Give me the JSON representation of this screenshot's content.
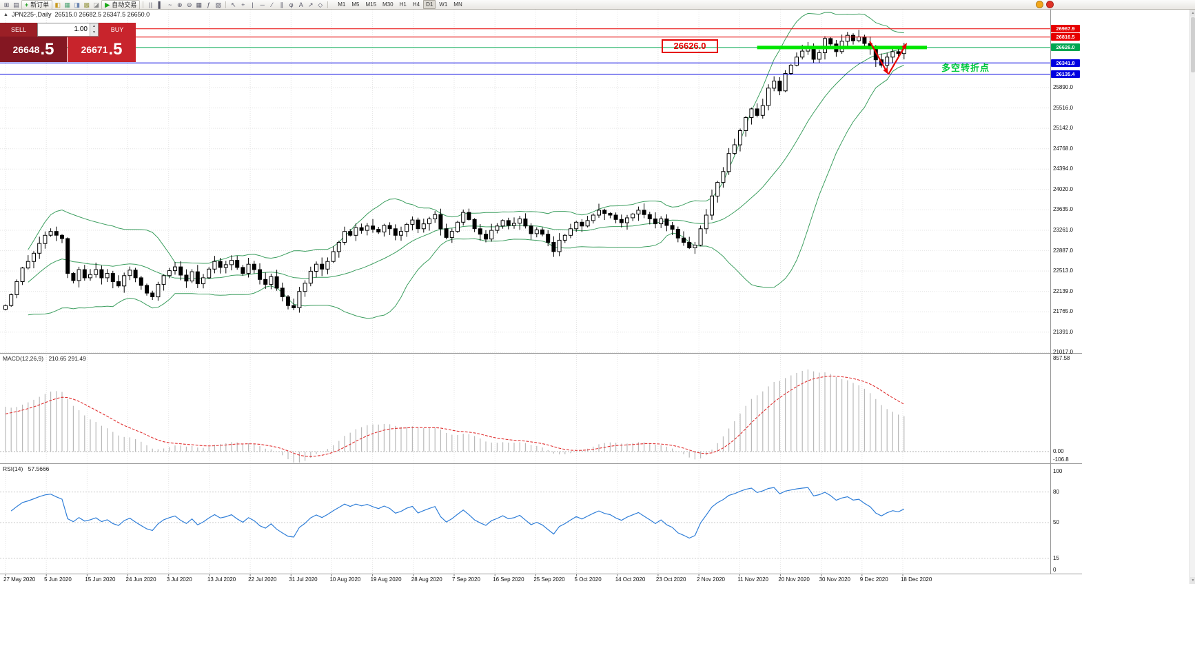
{
  "toolbar": {
    "groups": [
      {
        "type": "icons",
        "items": [
          {
            "name": "new-chart-icon",
            "glyph": "⊞"
          },
          {
            "name": "profiles-icon",
            "glyph": "▤"
          }
        ]
      },
      {
        "type": "button",
        "name": "new-order-button",
        "icon_name": "plus-icon",
        "icon": "+",
        "icon_color": "#1fa01f",
        "label": "新订单"
      },
      {
        "type": "icons",
        "items": [
          {
            "name": "market-watch-icon",
            "glyph": "◧",
            "color": "#c89a1e"
          },
          {
            "name": "data-window-icon",
            "glyph": "▦",
            "color": "#46a06e"
          },
          {
            "name": "navigator-icon",
            "glyph": "◨",
            "color": "#6a84b0"
          },
          {
            "name": "terminal-icon",
            "glyph": "▩",
            "color": "#9a9a4a"
          },
          {
            "name": "strategy-tester-icon",
            "glyph": "◪",
            "color": "#8a8a8a"
          }
        ]
      },
      {
        "type": "button",
        "name": "autotrading-button",
        "icon_name": "play-icon",
        "icon": "▶",
        "icon_color": "#18a818",
        "label": "自动交易"
      },
      {
        "type": "sep"
      },
      {
        "type": "icons",
        "items": [
          {
            "name": "bar-chart-icon",
            "glyph": "||"
          },
          {
            "name": "candle-chart-icon",
            "glyph": "▌"
          },
          {
            "name": "line-chart-icon",
            "glyph": "~"
          }
        ]
      },
      {
        "type": "icons",
        "items": [
          {
            "name": "zoom-in-icon",
            "glyph": "⊕"
          },
          {
            "name": "zoom-out-icon",
            "glyph": "⊖"
          }
        ]
      },
      {
        "type": "icons",
        "items": [
          {
            "name": "grid-icon",
            "glyph": "▦"
          },
          {
            "name": "indicators-icon",
            "glyph": "ƒ"
          },
          {
            "name": "templates-icon",
            "glyph": "▧"
          }
        ]
      },
      {
        "type": "sep"
      },
      {
        "type": "icons",
        "items": [
          {
            "name": "cursor-icon",
            "glyph": "↖"
          },
          {
            "name": "crosshair-icon",
            "glyph": "+"
          },
          {
            "name": "vertical-line-icon",
            "glyph": "|"
          },
          {
            "name": "horizontal-line-icon",
            "glyph": "─"
          },
          {
            "name": "trendline-icon",
            "glyph": "∕"
          },
          {
            "name": "channel-icon",
            "glyph": "∥"
          },
          {
            "name": "fibonacci-icon",
            "glyph": "φ"
          },
          {
            "name": "text-label-icon",
            "glyph": "A"
          },
          {
            "name": "arrow-object-icon",
            "glyph": "↗"
          },
          {
            "name": "shapes-icon",
            "glyph": "◇"
          }
        ]
      },
      {
        "type": "sep"
      },
      {
        "type": "timeframes",
        "items": [
          {
            "label": "M1"
          },
          {
            "label": "M5"
          },
          {
            "label": "M15"
          },
          {
            "label": "M30"
          },
          {
            "label": "H1"
          },
          {
            "label": "H4"
          },
          {
            "label": "D1",
            "active": true
          },
          {
            "label": "W1"
          },
          {
            "label": "MN"
          }
        ]
      },
      {
        "type": "circles",
        "items": [
          {
            "name": "community-alert-icon",
            "color": "#f2a71b"
          },
          {
            "name": "news-alert-icon",
            "color": "#e03226"
          }
        ]
      }
    ]
  },
  "chart_header": {
    "collapse_icon": "▲",
    "symbol": "JPN225-,Daily",
    "ohlc": "26515.0 26682.5 26347.5 26650.0"
  },
  "trade_panel": {
    "sell_label": "SELL",
    "buy_label": "BUY",
    "volume": "1.00",
    "spin_up": "▲",
    "spin_down": "▼",
    "sell_price_main": "26648",
    "sell_price_frac": ".5",
    "buy_price_main": "26671",
    "buy_price_frac": ".5"
  },
  "scrollbar": {
    "up": "▲",
    "down": "▼"
  },
  "colors": {
    "bull": "#ffffff",
    "bear": "#000000",
    "wick": "#000000",
    "bollinger": "#3c9e5f",
    "grid": "#e4e4e4",
    "macd_hist": "#b9b9b9",
    "macd_signal": "#e03030",
    "rsi_line": "#2f7ed8",
    "support_green": "#00e600",
    "annotation_red": "#e60000",
    "note_green": "#00c83c"
  },
  "chart_data": [
    {
      "type": "candlestick",
      "symbol": "JPN225-",
      "timeframe": "Daily",
      "ohlc_current": {
        "open": 26515.0,
        "high": 26682.5,
        "low": 26347.5,
        "close": 26650.0
      },
      "y_range": [
        21020,
        27320
      ],
      "y_ticks": [
        25890.0,
        25516.0,
        25142.0,
        24768.0,
        24394.0,
        24020.0,
        23635.0,
        23261.0,
        22887.0,
        22513.0,
        22139.0,
        21765.0,
        21391.0,
        21017.0
      ],
      "x_labels": [
        "27 May 2020",
        "5 Jun 2020",
        "15 Jun 2020",
        "24 Jun 2020",
        "3 Jul 2020",
        "13 Jul 2020",
        "22 Jul 2020",
        "31 Jul 2020",
        "10 Aug 2020",
        "19 Aug 2020",
        "28 Aug 2020",
        "7 Sep 2020",
        "16 Sep 2020",
        "25 Sep 2020",
        "5 Oct 2020",
        "14 Oct 2020",
        "23 Oct 2020",
        "2 Nov 2020",
        "11 Nov 2020",
        "20 Nov 2020",
        "30 Nov 2020",
        "9 Dec 2020",
        "18 Dec 2020"
      ],
      "closes": [
        21890,
        22090,
        22330,
        22580,
        22700,
        22850,
        23030,
        23180,
        23250,
        23180,
        23120,
        22480,
        22350,
        22550,
        22400,
        22460,
        22550,
        22400,
        22480,
        22330,
        22250,
        22440,
        22540,
        22400,
        22260,
        22120,
        22050,
        22280,
        22440,
        22530,
        22600,
        22450,
        22340,
        22510,
        22290,
        22400,
        22560,
        22700,
        22590,
        22640,
        22720,
        22590,
        22480,
        22650,
        22550,
        22370,
        22280,
        22420,
        22210,
        22050,
        21890,
        21850,
        22150,
        22300,
        22520,
        22650,
        22560,
        22700,
        22880,
        23050,
        23250,
        23180,
        23320,
        23270,
        23350,
        23290,
        23240,
        23360,
        23300,
        23180,
        23250,
        23380,
        23460,
        23300,
        23390,
        23480,
        23560,
        23300,
        23140,
        23250,
        23420,
        23600,
        23470,
        23300,
        23200,
        23110,
        23270,
        23350,
        23450,
        23360,
        23400,
        23480,
        23350,
        23210,
        23280,
        23200,
        23050,
        22880,
        23090,
        23180,
        23300,
        23420,
        23350,
        23450,
        23550,
        23640,
        23580,
        23550,
        23470,
        23410,
        23500,
        23570,
        23640,
        23560,
        23480,
        23390,
        23480,
        23360,
        23290,
        23130,
        23050,
        22950,
        23000,
        23300,
        23550,
        23900,
        24150,
        24350,
        24680,
        24840,
        25100,
        25340,
        25500,
        25380,
        25560,
        25880,
        26010,
        25830,
        26150,
        26300,
        26450,
        26560,
        26650,
        26410,
        26530,
        26790,
        26690,
        26550,
        26740,
        26850,
        26750,
        26820,
        26700,
        26600,
        26400,
        26300,
        26450,
        26550,
        26515,
        26650
      ],
      "bollinger": {
        "period": 20,
        "deviation": 2
      },
      "hlines": [
        {
          "price": 26967.9,
          "color": "#e60000"
        },
        {
          "price": 26816.5,
          "color": "#e60000"
        },
        {
          "price": 26626.0,
          "color": "#00a651"
        },
        {
          "price": 26341.8,
          "color": "#0000e0"
        },
        {
          "price": 26135.4,
          "color": "#0000e0"
        }
      ],
      "objects": {
        "support_line": {
          "price": 26626.0,
          "from_index": 133,
          "to_x": 1345,
          "color": "#00e600",
          "width": 5
        },
        "callout": {
          "text": "26626.0",
          "color": "#e60000"
        },
        "note": {
          "text": "多空转折点",
          "color": "#00c83c"
        },
        "arrows": {
          "color": "#e60000",
          "segments": [
            {
              "from": [
                1262,
                60
              ],
              "to": [
                1289,
                108
              ]
            },
            {
              "from": [
                1289,
                108
              ],
              "to": [
                1316,
                62
              ]
            }
          ]
        }
      }
    },
    {
      "type": "macd",
      "label": "MACD(12,26,9)",
      "values_text": "210.65 291.49",
      "params": {
        "fast": 12,
        "slow": 26,
        "signal": 9
      },
      "current": {
        "macd": 210.65,
        "signal": 291.49
      },
      "axis_ticks": [
        "857.58",
        "0.00",
        "-106.8"
      ]
    },
    {
      "type": "rsi",
      "label": "RSI(14)",
      "value_text": "57.5666",
      "period": 14,
      "current": 57.5666,
      "axis_ticks": [
        100,
        80,
        50,
        15,
        0
      ],
      "levels": [
        80,
        50,
        15
      ]
    }
  ]
}
